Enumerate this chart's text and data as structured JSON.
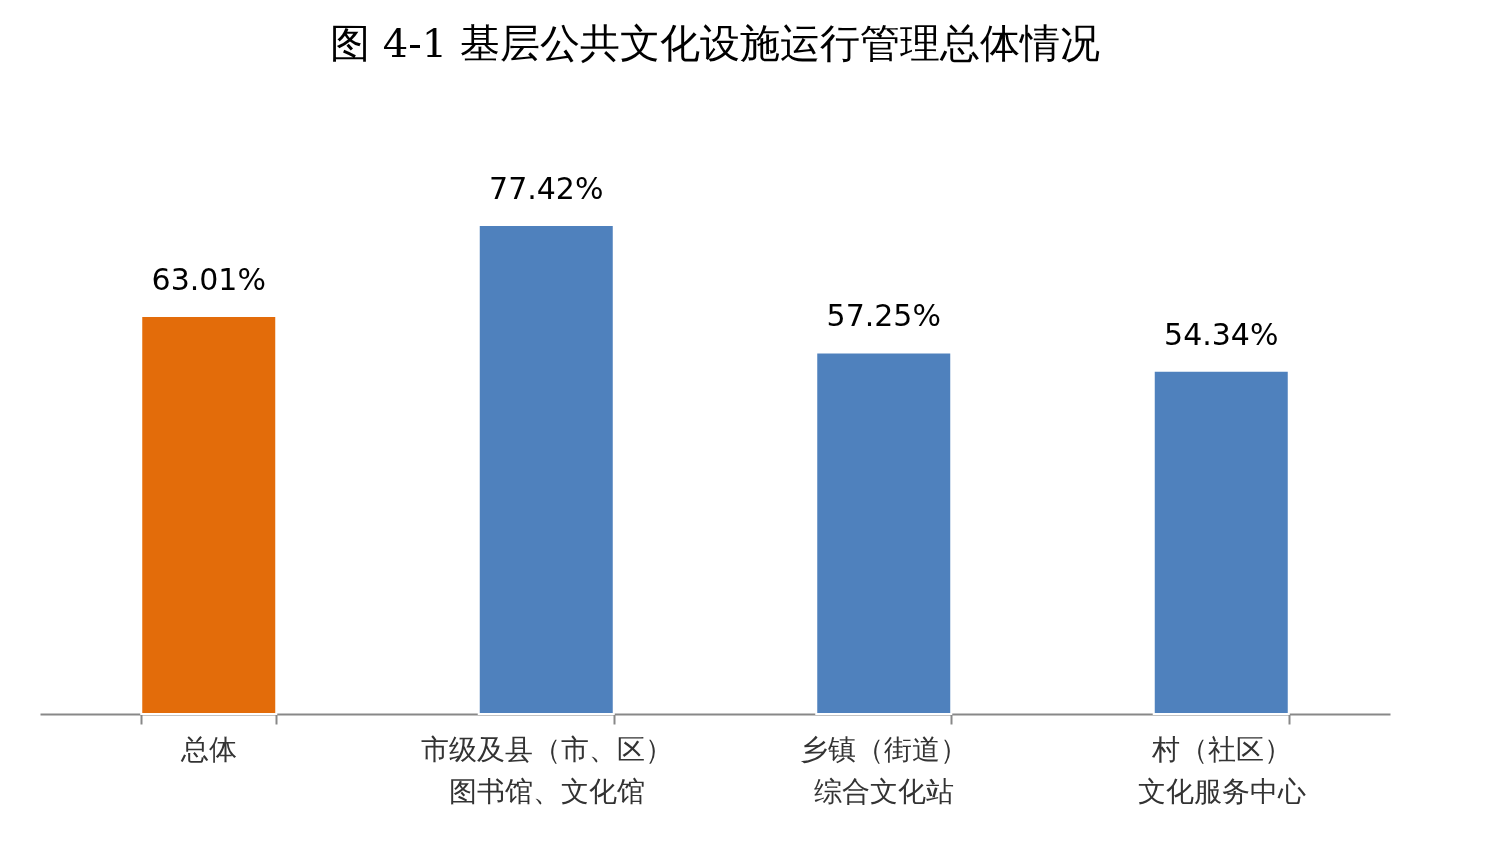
{
  "chart_data": {
    "type": "bar",
    "title": "图 4-1 基层公共文化设施运行管理总体情况",
    "categories": [
      "总体",
      "市级及县（市、区）图书馆、文化馆",
      "乡镇（街道）综合文化站",
      "村（社区）文化服务中心"
    ],
    "values": [
      63.01,
      77.42,
      57.25,
      54.34
    ],
    "colors": [
      "#e36c0a",
      "#4f81bd",
      "#4f81bd",
      "#4f81bd"
    ],
    "value_labels": [
      "63.01%",
      "77.42%",
      "57.25%",
      "54.34%"
    ]
  }
}
